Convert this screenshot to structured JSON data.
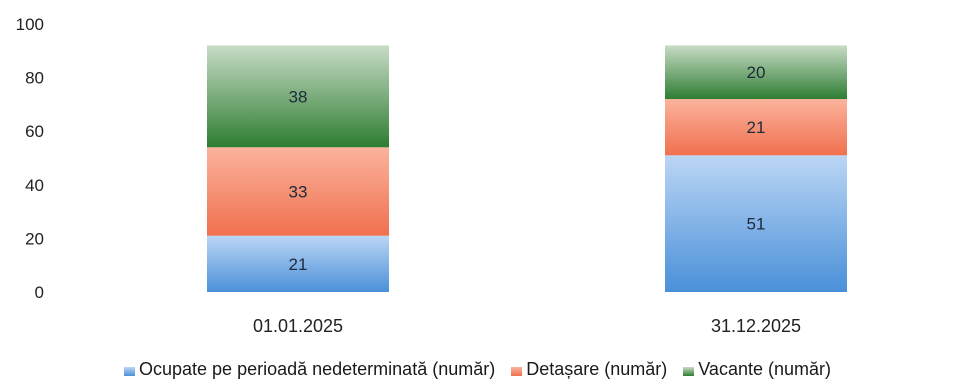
{
  "chart_data": {
    "type": "bar",
    "stacked": true,
    "categories": [
      "01.01.2025",
      "31.12.2025"
    ],
    "series": [
      {
        "name": "Ocupate pe perioadă nedeterminată (număr)",
        "values": [
          21,
          51
        ],
        "color": "#4a90d9",
        "color_top": "#bcd6f5"
      },
      {
        "name": "Detașare (număr)",
        "values": [
          33,
          21
        ],
        "color": "#f0704f",
        "color_top": "#fbb39c"
      },
      {
        "name": "Vacante (număr)",
        "values": [
          38,
          20
        ],
        "color": "#2e7d32",
        "color_top": "#c8dcc6"
      }
    ],
    "ylim": [
      0,
      100
    ],
    "yticks": [
      "0",
      "20",
      "40",
      "60",
      "80",
      "100"
    ],
    "title": "",
    "xlabel": "",
    "ylabel": "",
    "grid": false,
    "legend_position": "bottom"
  }
}
